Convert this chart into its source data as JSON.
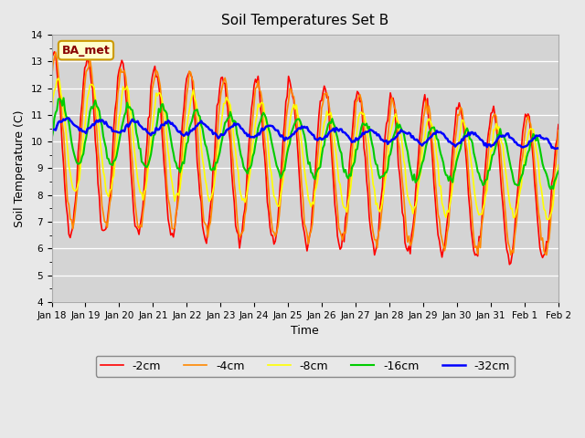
{
  "title": "Soil Temperatures Set B",
  "xlabel": "Time",
  "ylabel": "Soil Temperature (C)",
  "ylim": [
    4.0,
    14.0
  ],
  "yticks": [
    4.0,
    5.0,
    6.0,
    7.0,
    8.0,
    9.0,
    10.0,
    11.0,
    12.0,
    13.0,
    14.0
  ],
  "xtick_labels": [
    "Jan 18",
    "Jan 19",
    "Jan 20",
    "Jan 21",
    "Jan 22",
    "Jan 23",
    "Jan 24",
    "Jan 25",
    "Jan 26",
    "Jan 27",
    "Jan 28",
    "Jan 29",
    "Jan 30",
    "Jan 31",
    "Feb 1",
    "Feb 2"
  ],
  "line_colors": [
    "#ff0000",
    "#ff8800",
    "#ffff00",
    "#00cc00",
    "#0000ff"
  ],
  "line_labels": [
    "-2cm",
    "-4cm",
    "-8cm",
    "-16cm",
    "-32cm"
  ],
  "line_widths": [
    1.2,
    1.2,
    1.2,
    1.5,
    1.8
  ],
  "bg_color": "#e8e8e8",
  "plot_bg_color": "#d4d4d4",
  "annotation_text": "BA_met",
  "annotation_bg": "#ffffcc",
  "annotation_border": "#cc9900"
}
